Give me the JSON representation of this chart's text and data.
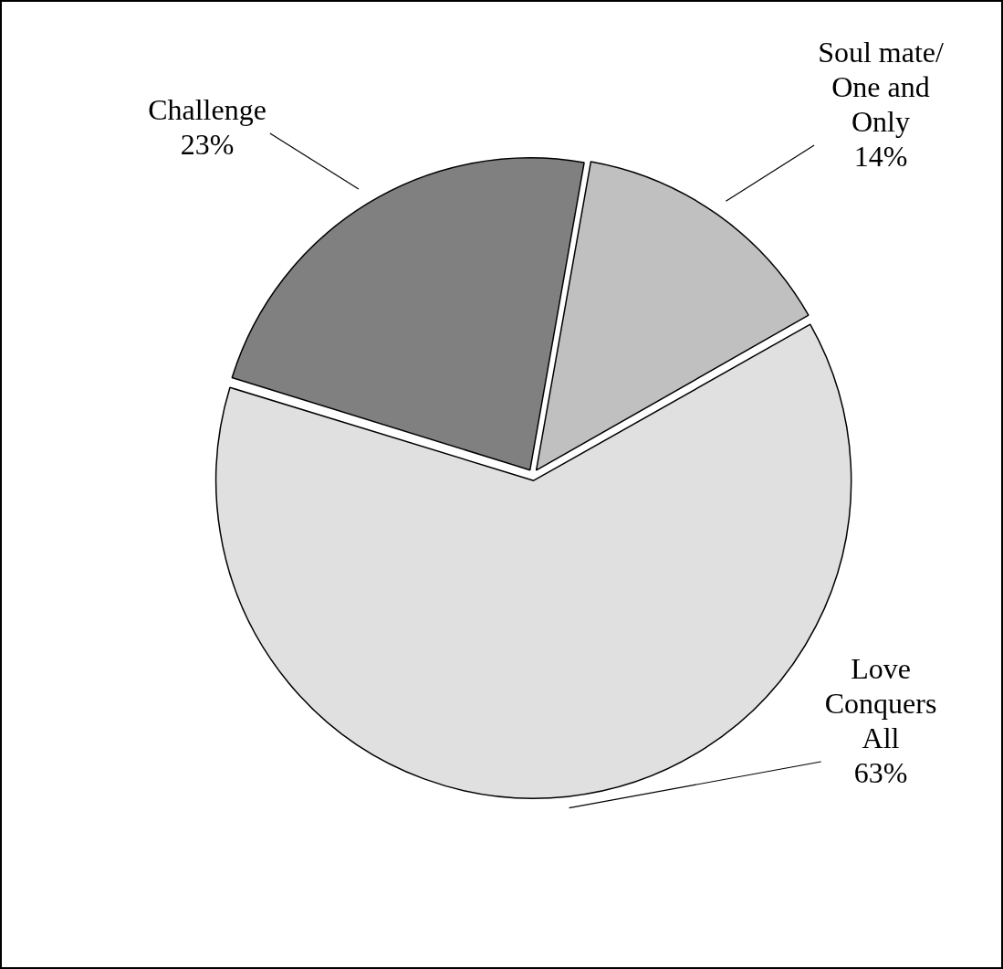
{
  "chart_data": {
    "type": "pie",
    "categories": [
      "Soul mate/ One and Only",
      "Love Conquers All",
      "Challenge"
    ],
    "values": [
      14,
      63,
      23
    ],
    "colors": [
      "#c0c0c0",
      "#e0e0e0",
      "#808080"
    ],
    "value_labels": [
      "14%",
      "63%",
      "23%"
    ],
    "legend": false
  }
}
